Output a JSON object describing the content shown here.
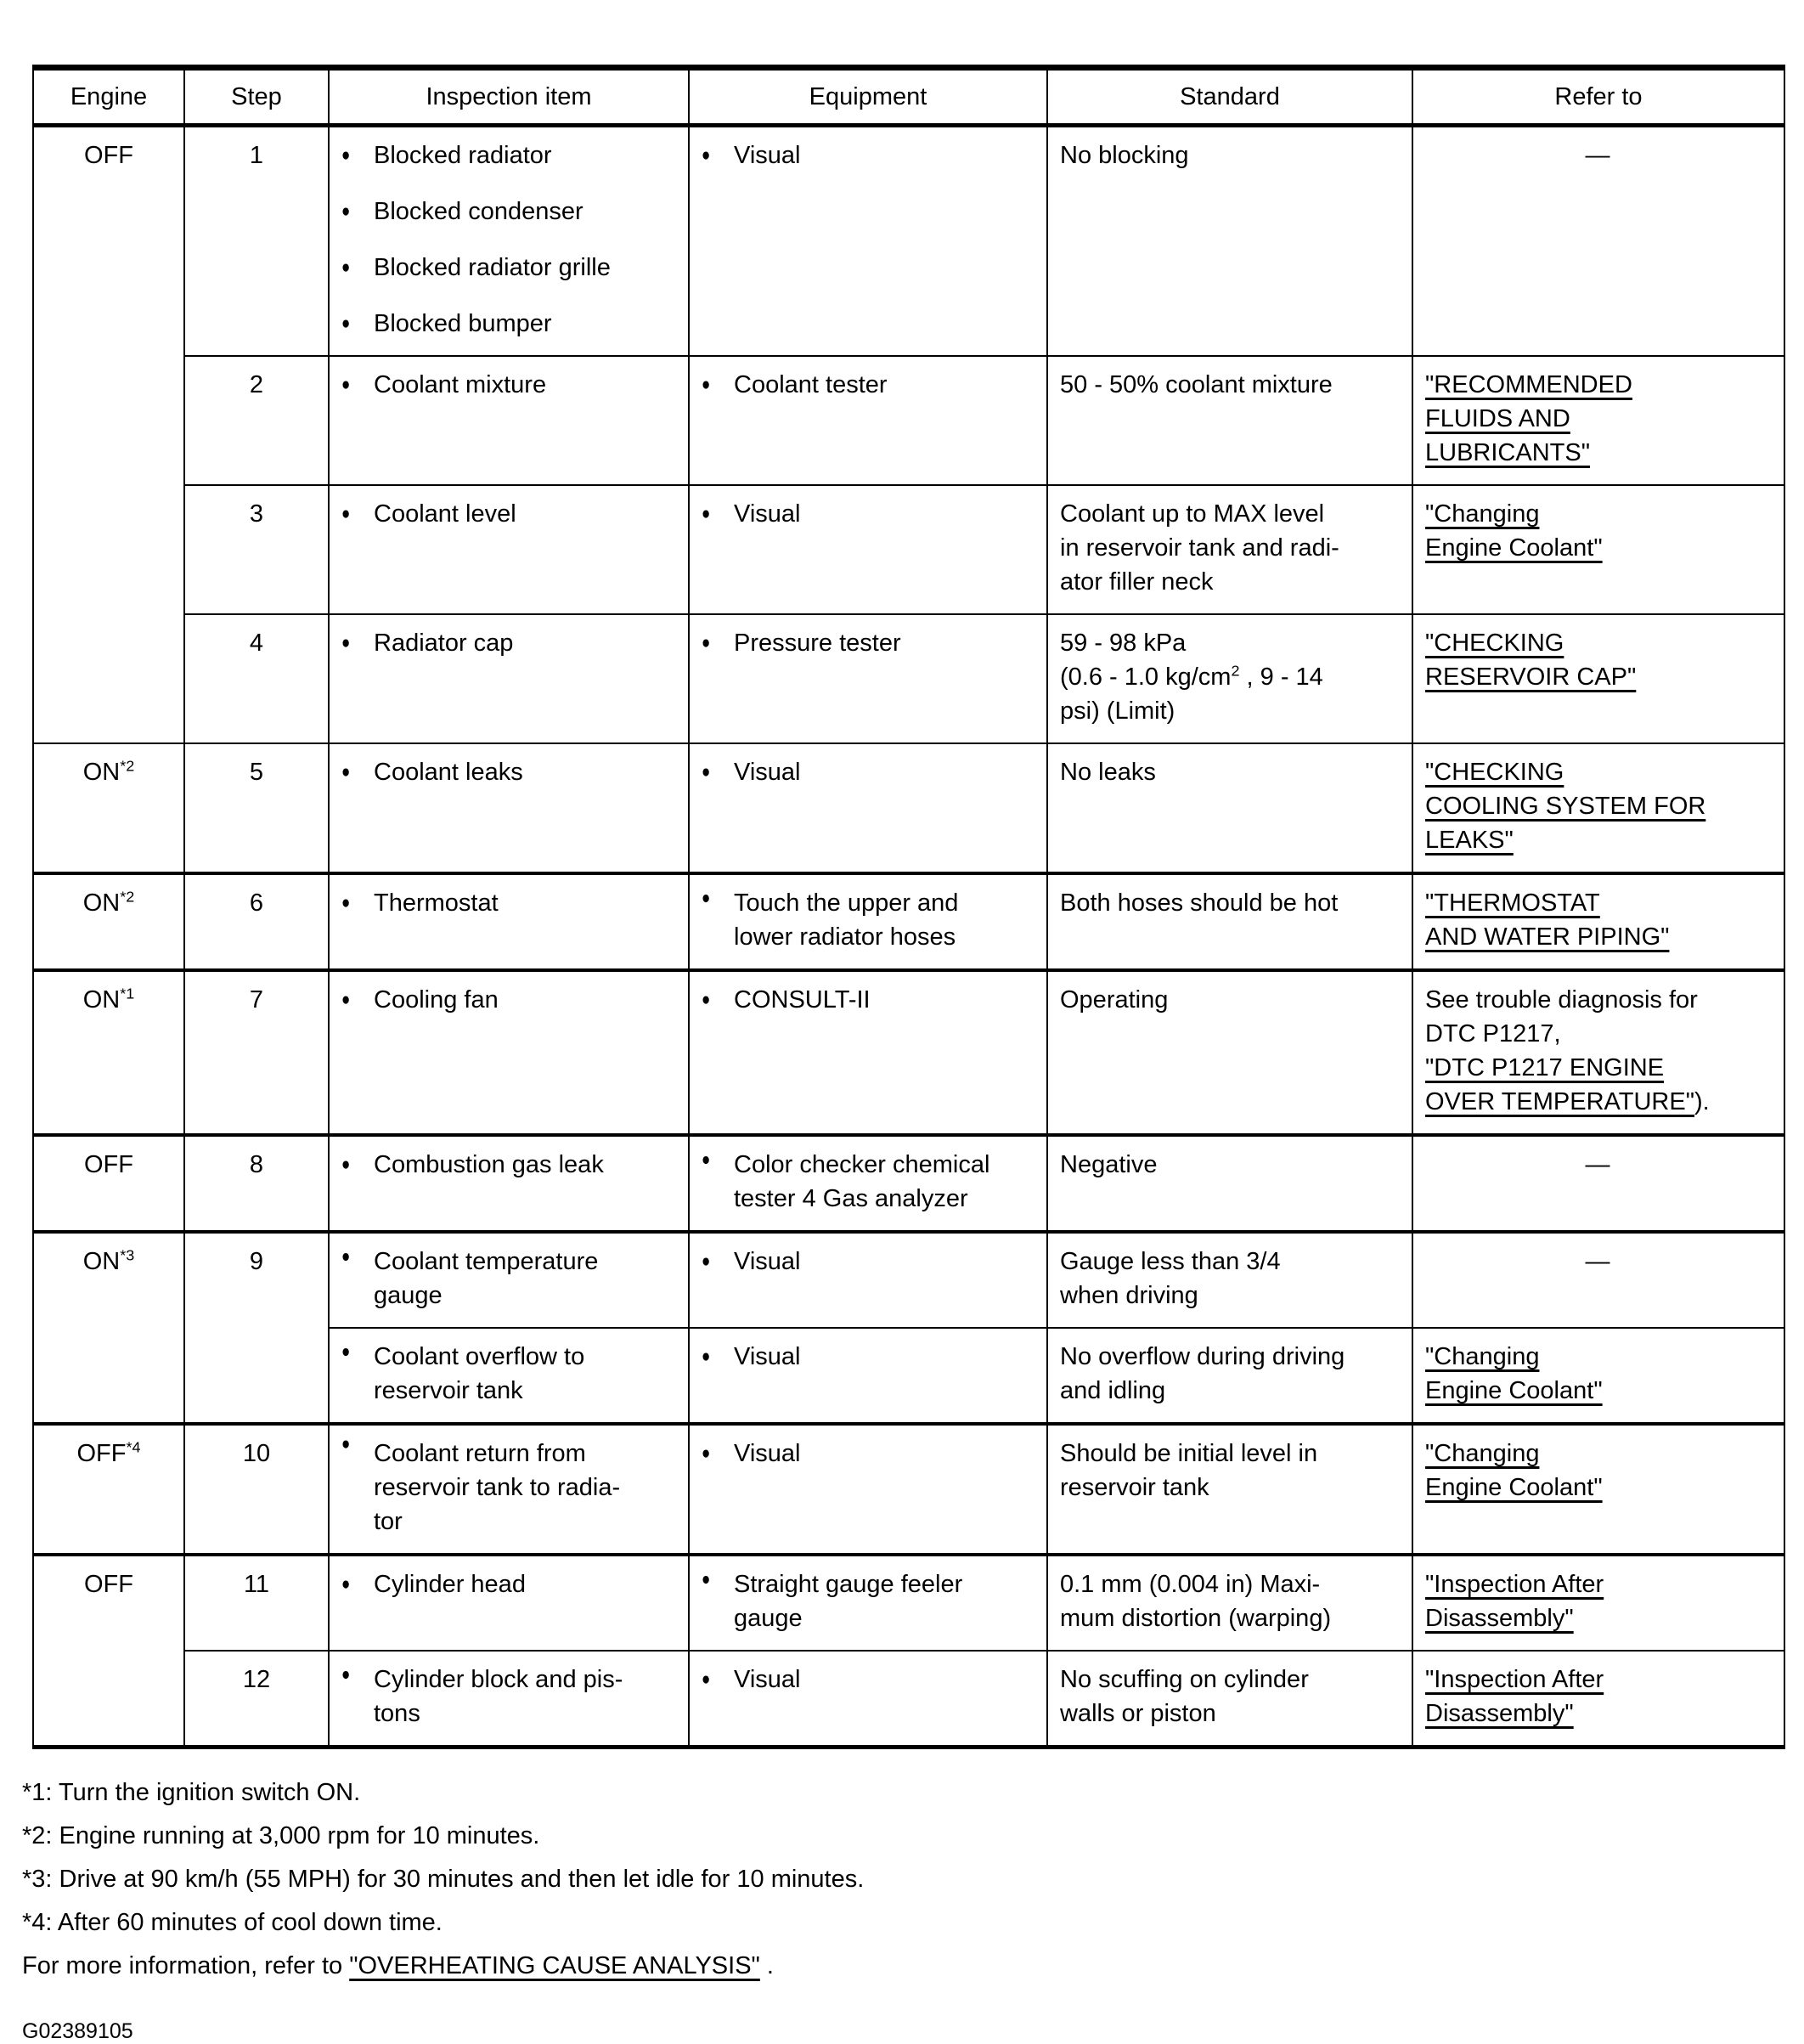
{
  "table": {
    "bullet_icon": "●",
    "dash_char": "—",
    "columns": [
      {
        "label": "Engine"
      },
      {
        "label": "Step"
      },
      {
        "label": "Inspection item"
      },
      {
        "label": "Equipment"
      },
      {
        "label": "Standard"
      },
      {
        "label": "Refer to"
      }
    ],
    "rows": [
      {
        "sep": "none",
        "engine": {
          "text": "OFF",
          "sup": "",
          "rowspan": 4
        },
        "step": {
          "text": "1",
          "rowspan": 1
        },
        "items": [
          {
            "lines": [
              "Blocked radiator"
            ]
          },
          {
            "lines": [
              "Blocked condenser"
            ]
          },
          {
            "lines": [
              "Blocked radiator grille"
            ]
          },
          {
            "lines": [
              "Blocked bumper"
            ]
          }
        ],
        "equipment": [
          {
            "lines": [
              "Visual"
            ]
          }
        ],
        "standard": {
          "lines": [
            "No blocking"
          ]
        },
        "refer": {
          "dash": true
        }
      },
      {
        "sep": "thin",
        "step": {
          "text": "2",
          "rowspan": 1
        },
        "items": [
          {
            "lines": [
              "Coolant mixture"
            ]
          }
        ],
        "equipment": [
          {
            "lines": [
              "Coolant tester"
            ]
          }
        ],
        "standard": {
          "lines": [
            "50 - 50% coolant mixture"
          ]
        },
        "refer": {
          "lines": [
            {
              "segments": [
                {
                  "t": "\"RECOMMENDED",
                  "link": true
                }
              ]
            },
            {
              "segments": [
                {
                  "t": "FLUIDS AND",
                  "link": true
                }
              ]
            },
            {
              "segments": [
                {
                  "t": "LUBRICANTS\"",
                  "link": true
                }
              ]
            }
          ]
        }
      },
      {
        "sep": "thin",
        "step": {
          "text": "3",
          "rowspan": 1
        },
        "items": [
          {
            "lines": [
              "Coolant level"
            ]
          }
        ],
        "equipment": [
          {
            "lines": [
              "Visual"
            ]
          }
        ],
        "standard": {
          "lines": [
            "Coolant up to MAX level",
            "in reservoir tank and radi-",
            "ator filler neck"
          ]
        },
        "refer": {
          "lines": [
            {
              "segments": [
                {
                  "t": "\"Changing",
                  "link": true
                }
              ]
            },
            {
              "segments": [
                {
                  "t": "Engine Coolant\"",
                  "link": true
                }
              ]
            }
          ]
        }
      },
      {
        "sep": "thin",
        "step": {
          "text": "4",
          "rowspan": 1
        },
        "items": [
          {
            "lines": [
              "Radiator cap"
            ]
          }
        ],
        "equipment": [
          {
            "lines": [
              "Pressure tester"
            ]
          }
        ],
        "standard": {
          "lines": [
            "59 - 98 kPa",
            {
              "segments": [
                {
                  "t": "(0.6 - 1.0 kg/cm"
                },
                {
                  "t": "2",
                  "sup": true
                },
                {
                  "t": " , 9 - 14"
                }
              ]
            },
            "psi) (Limit)"
          ]
        },
        "refer": {
          "lines": [
            {
              "segments": [
                {
                  "t": "\"CHECKING",
                  "link": true
                }
              ]
            },
            {
              "segments": [
                {
                  "t": "RESERVOIR CAP\"",
                  "link": true
                }
              ]
            }
          ]
        }
      },
      {
        "sep": "thin",
        "engine": {
          "text": "ON",
          "sup": "*2",
          "rowspan": 1
        },
        "step": {
          "text": "5",
          "rowspan": 1
        },
        "items": [
          {
            "lines": [
              "Coolant leaks"
            ]
          }
        ],
        "equipment": [
          {
            "lines": [
              "Visual"
            ]
          }
        ],
        "standard": {
          "lines": [
            "No leaks"
          ]
        },
        "refer": {
          "lines": [
            {
              "segments": [
                {
                  "t": "\"CHECKING",
                  "link": true
                }
              ]
            },
            {
              "segments": [
                {
                  "t": "COOLING SYSTEM FOR",
                  "link": true
                }
              ]
            },
            {
              "segments": [
                {
                  "t": "LEAKS\"",
                  "link": true
                }
              ]
            }
          ]
        }
      },
      {
        "sep": "thick",
        "engine": {
          "text": "ON",
          "sup": "*2",
          "rowspan": 1
        },
        "step": {
          "text": "6",
          "rowspan": 1
        },
        "items": [
          {
            "lines": [
              "Thermostat"
            ]
          }
        ],
        "equipment": [
          {
            "lines": [
              "Touch the upper and",
              "lower radiator hoses"
            ]
          }
        ],
        "standard": {
          "lines": [
            "Both hoses should be hot"
          ]
        },
        "refer": {
          "lines": [
            {
              "segments": [
                {
                  "t": "\"THERMOSTAT",
                  "link": true
                }
              ]
            },
            {
              "segments": [
                {
                  "t": "AND WATER PIPING\"",
                  "link": true
                }
              ]
            }
          ]
        }
      },
      {
        "sep": "thick",
        "engine": {
          "text": "ON",
          "sup": "*1",
          "rowspan": 1
        },
        "step": {
          "text": "7",
          "rowspan": 1
        },
        "items": [
          {
            "lines": [
              "Cooling fan"
            ]
          }
        ],
        "equipment": [
          {
            "lines": [
              "CONSULT-II"
            ]
          }
        ],
        "standard": {
          "lines": [
            "Operating"
          ]
        },
        "refer": {
          "lines": [
            {
              "segments": [
                {
                  "t": "See trouble diagnosis for"
                }
              ]
            },
            {
              "segments": [
                {
                  "t": "DTC P1217,"
                }
              ]
            },
            {
              "segments": [
                {
                  "t": "\"DTC P1217 ENGINE",
                  "link": true
                }
              ]
            },
            {
              "segments": [
                {
                  "t": "OVER TEMPERATURE\"",
                  "link": true
                },
                {
                  "t": ")."
                }
              ]
            }
          ]
        }
      },
      {
        "sep": "thick",
        "engine": {
          "text": "OFF",
          "sup": "",
          "rowspan": 1
        },
        "step": {
          "text": "8",
          "rowspan": 1
        },
        "items": [
          {
            "lines": [
              "Combustion gas leak"
            ]
          }
        ],
        "equipment": [
          {
            "lines": [
              "Color checker chemical",
              "tester 4 Gas analyzer"
            ]
          }
        ],
        "standard": {
          "lines": [
            "Negative"
          ]
        },
        "refer": {
          "dash": true
        }
      },
      {
        "sep": "thick",
        "engine": {
          "text": "ON",
          "sup": "*3",
          "rowspan": 2
        },
        "step": {
          "text": "9",
          "rowspan": 2
        },
        "items": [
          {
            "lines": [
              "Coolant temperature",
              "gauge"
            ]
          }
        ],
        "equipment": [
          {
            "lines": [
              "Visual"
            ]
          }
        ],
        "standard": {
          "lines": [
            "Gauge less than 3/4",
            "when driving"
          ]
        },
        "refer": {
          "dash": true
        }
      },
      {
        "sep": "thin",
        "items": [
          {
            "lines": [
              "Coolant overflow to",
              "reservoir tank"
            ]
          }
        ],
        "equipment": [
          {
            "lines": [
              "Visual"
            ]
          }
        ],
        "standard": {
          "lines": [
            "No overflow during driving",
            "and idling"
          ]
        },
        "refer": {
          "lines": [
            {
              "segments": [
                {
                  "t": "\"Changing",
                  "link": true
                }
              ]
            },
            {
              "segments": [
                {
                  "t": "Engine Coolant\"",
                  "link": true
                }
              ]
            }
          ]
        }
      },
      {
        "sep": "thick",
        "engine": {
          "text": "OFF",
          "sup": "*4",
          "rowspan": 1
        },
        "step": {
          "text": "10",
          "rowspan": 1
        },
        "items": [
          {
            "lines": [
              "Coolant return from",
              "reservoir tank to radia-",
              "tor"
            ]
          }
        ],
        "equipment": [
          {
            "lines": [
              "Visual"
            ]
          }
        ],
        "standard": {
          "lines": [
            "Should be initial level in",
            "reservoir tank"
          ]
        },
        "refer": {
          "lines": [
            {
              "segments": [
                {
                  "t": "\"Changing",
                  "link": true
                }
              ]
            },
            {
              "segments": [
                {
                  "t": "Engine Coolant\"",
                  "link": true
                }
              ]
            }
          ]
        }
      },
      {
        "sep": "thick",
        "engine": {
          "text": "OFF",
          "sup": "",
          "rowspan": 2
        },
        "step": {
          "text": "11",
          "rowspan": 1
        },
        "items": [
          {
            "lines": [
              "Cylinder head"
            ]
          }
        ],
        "equipment": [
          {
            "lines": [
              "Straight gauge feeler",
              "gauge"
            ]
          }
        ],
        "standard": {
          "lines": [
            "0.1 mm (0.004 in) Maxi-",
            "mum distortion (warping)"
          ]
        },
        "refer": {
          "lines": [
            {
              "segments": [
                {
                  "t": "\"Inspection After",
                  "link": true
                }
              ]
            },
            {
              "segments": [
                {
                  "t": "Disassembly\"",
                  "link": true
                }
              ]
            }
          ]
        }
      },
      {
        "sep": "thin",
        "step": {
          "text": "12",
          "rowspan": 1
        },
        "items": [
          {
            "lines": [
              "Cylinder block and pis-",
              "tons"
            ]
          }
        ],
        "equipment": [
          {
            "lines": [
              "Visual"
            ]
          }
        ],
        "standard": {
          "lines": [
            "No scuffing on cylinder",
            "walls or piston"
          ]
        },
        "refer": {
          "lines": [
            {
              "segments": [
                {
                  "t": "\"Inspection After",
                  "link": true
                }
              ]
            },
            {
              "segments": [
                {
                  "t": "Disassembly\"",
                  "link": true
                }
              ]
            }
          ]
        }
      }
    ]
  },
  "footnotes": [
    {
      "segments": [
        {
          "t": "*1: Turn the ignition switch ON."
        }
      ]
    },
    {
      "segments": [
        {
          "t": "*2: Engine running at 3,000 rpm for 10 minutes."
        }
      ]
    },
    {
      "segments": [
        {
          "t": "*3: Drive at 90 km/h (55 MPH) for 30 minutes and then let idle for 10 minutes."
        }
      ]
    },
    {
      "segments": [
        {
          "t": "*4: After 60 minutes of cool down time."
        }
      ]
    },
    {
      "segments": [
        {
          "t": "For more information, refer to "
        },
        {
          "t": "\"OVERHEATING CAUSE ANALYSIS\"",
          "link": true
        },
        {
          "t": " ."
        }
      ]
    }
  ],
  "figure_id": "G02389105"
}
